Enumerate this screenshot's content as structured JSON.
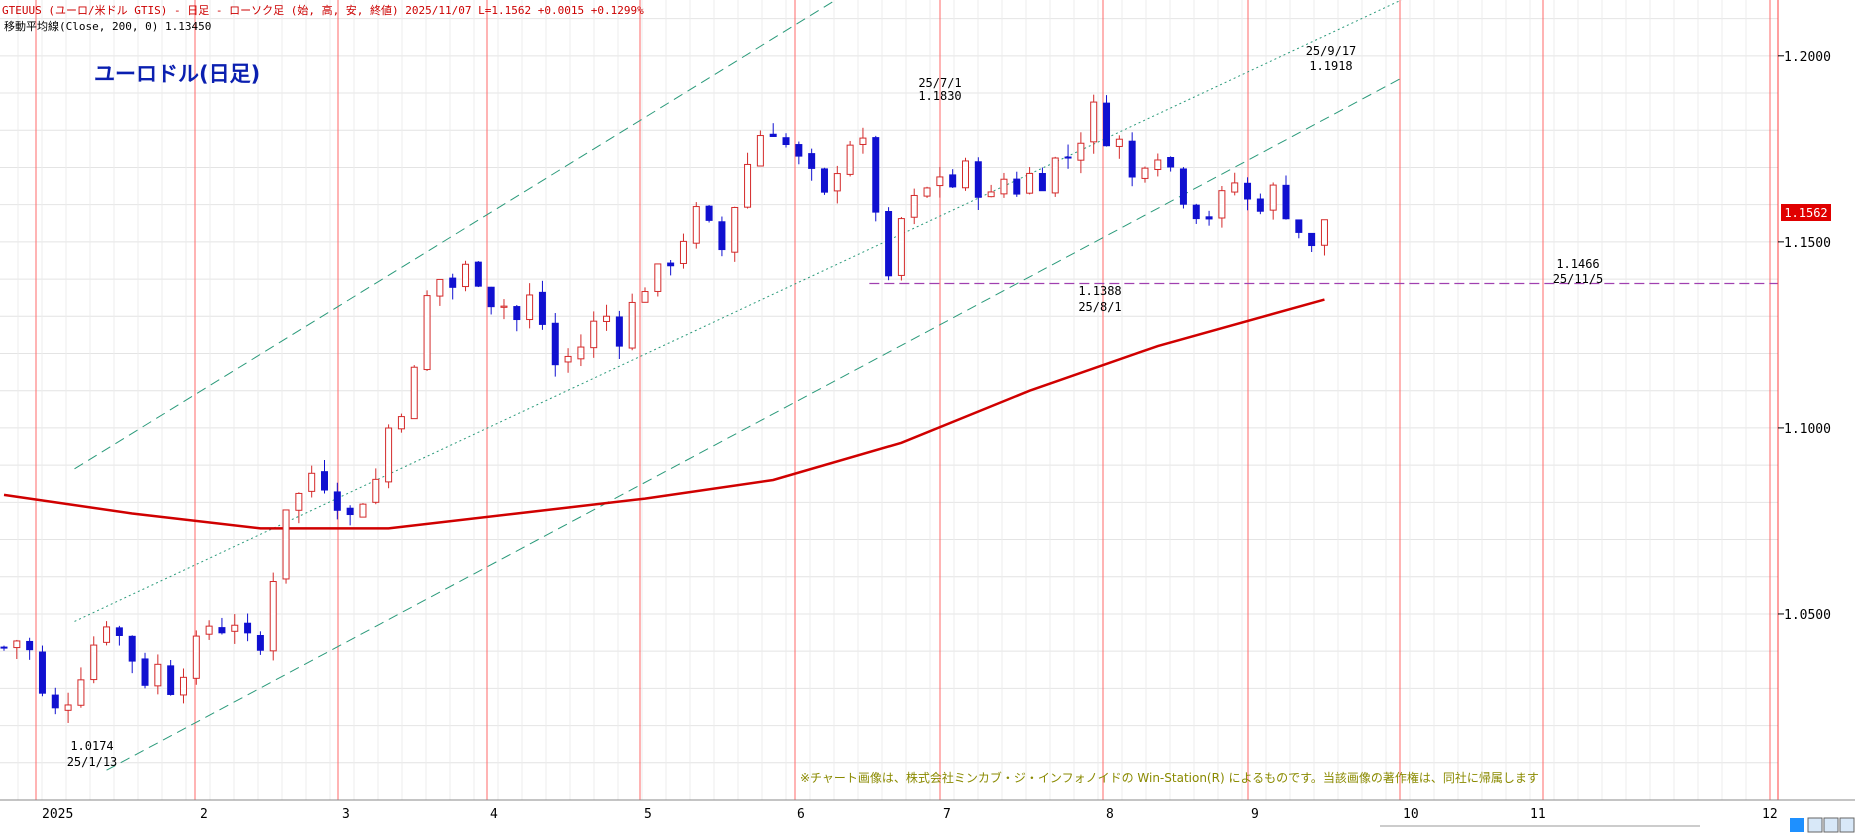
{
  "header": {
    "symbol_line": "GTEUUS (ユーロ/米ドル GTIS) - 日足 - ローソク足 (始, 高, 安, 終値)  2025/11/07  L=1.1562 +0.0015  +0.1299%",
    "ma_line": "移動平均線(Close, 200, 0) 1.13450"
  },
  "title": "ユーロドル(日足)",
  "copyright": "※チャート画像は、株式会社ミンカブ・ジ・インフォノイドの Win-Station(R) によるものです。当該画像の著作権は、同社に帰属します",
  "current_price_label": "1.1562",
  "colors": {
    "up": "#d42a2a",
    "down": "#1010d0",
    "ma": "#d00000",
    "channel": "#2a9a7a",
    "support": "#a040b0",
    "price_tag_bg": "#e00000"
  },
  "annotations": [
    {
      "value": "1.0174",
      "date": "25/1/13"
    },
    {
      "value": "1.1830",
      "date": "25/7/1"
    },
    {
      "value": "1.1388",
      "date": "25/8/1"
    },
    {
      "value": "1.1918",
      "date": "25/9/17"
    },
    {
      "value": "1.1466",
      "date": "25/11/5"
    }
  ],
  "chart_data": {
    "type": "candlestick",
    "interval": "daily",
    "ylim": [
      1.0,
      1.215
    ],
    "y_ticks": [
      "1.2000",
      "1.1500",
      "1.1000",
      "1.0500"
    ],
    "x_ticks": [
      "2025",
      "2",
      "3",
      "4",
      "5",
      "6",
      "7",
      "8",
      "9",
      "10",
      "11",
      "12"
    ],
    "grid": true,
    "close_path": [
      [
        0,
        1.041
      ],
      [
        4,
        1.043
      ],
      [
        8,
        1.04
      ],
      [
        12,
        1.028
      ],
      [
        16,
        1.024
      ],
      [
        20,
        1.027
      ],
      [
        24,
        1.034
      ],
      [
        28,
        1.042
      ],
      [
        32,
        1.048
      ],
      [
        36,
        1.044
      ],
      [
        40,
        1.038
      ],
      [
        44,
        1.032
      ],
      [
        48,
        1.036
      ],
      [
        52,
        1.03
      ],
      [
        56,
        1.035
      ],
      [
        60,
        1.042
      ],
      [
        64,
        1.047
      ],
      [
        68,
        1.046
      ],
      [
        72,
        1.048
      ],
      [
        76,
        1.043
      ],
      [
        80,
        1.04
      ],
      [
        84,
        1.06
      ],
      [
        88,
        1.079
      ],
      [
        92,
        1.082
      ],
      [
        96,
        1.088
      ],
      [
        100,
        1.085
      ],
      [
        104,
        1.08
      ],
      [
        108,
        1.076
      ],
      [
        112,
        1.081
      ],
      [
        116,
        1.086
      ],
      [
        120,
        1.1
      ],
      [
        124,
        1.105
      ],
      [
        128,
        1.115
      ],
      [
        132,
        1.135
      ],
      [
        136,
        1.14
      ],
      [
        140,
        1.138
      ],
      [
        144,
        1.143
      ],
      [
        148,
        1.14
      ],
      [
        152,
        1.134
      ],
      [
        156,
        1.133
      ],
      [
        160,
        1.129
      ],
      [
        164,
        1.135
      ],
      [
        168,
        1.128
      ],
      [
        172,
        1.117
      ],
      [
        176,
        1.119
      ],
      [
        180,
        1.122
      ],
      [
        184,
        1.128
      ],
      [
        188,
        1.13
      ],
      [
        192,
        1.124
      ],
      [
        196,
        1.133
      ],
      [
        200,
        1.138
      ],
      [
        204,
        1.142
      ],
      [
        208,
        1.145
      ],
      [
        212,
        1.151
      ],
      [
        216,
        1.158
      ],
      [
        220,
        1.154
      ],
      [
        224,
        1.148
      ],
      [
        228,
        1.16
      ],
      [
        232,
        1.171
      ],
      [
        236,
        1.179
      ],
      [
        240,
        1.18
      ],
      [
        244,
        1.176
      ],
      [
        248,
        1.172
      ],
      [
        252,
        1.168
      ],
      [
        256,
        1.162
      ],
      [
        260,
        1.17
      ],
      [
        264,
        1.177
      ],
      [
        268,
        1.176
      ],
      [
        272,
        1.159
      ],
      [
        276,
        1.1388
      ],
      [
        280,
        1.156
      ],
      [
        284,
        1.161
      ],
      [
        288,
        1.164
      ],
      [
        292,
        1.168
      ],
      [
        296,
        1.165
      ],
      [
        300,
        1.17
      ],
      [
        304,
        1.164
      ],
      [
        308,
        1.162
      ],
      [
        312,
        1.167
      ],
      [
        316,
        1.164
      ],
      [
        320,
        1.168
      ],
      [
        324,
        1.166
      ],
      [
        328,
        1.172
      ],
      [
        332,
        1.173
      ],
      [
        336,
        1.178
      ],
      [
        340,
        1.186
      ],
      [
        344,
        1.178
      ],
      [
        348,
        1.177
      ],
      [
        352,
        1.167
      ],
      [
        356,
        1.172
      ],
      [
        360,
        1.174
      ],
      [
        364,
        1.17
      ],
      [
        368,
        1.162
      ],
      [
        372,
        1.158
      ],
      [
        376,
        1.157
      ],
      [
        380,
        1.162
      ],
      [
        384,
        1.166
      ],
      [
        388,
        1.161
      ],
      [
        392,
        1.16
      ],
      [
        396,
        1.164
      ],
      [
        400,
        1.158
      ],
      [
        404,
        1.153
      ],
      [
        408,
        1.148
      ],
      [
        412,
        1.1562
      ]
    ],
    "ma200_path": [
      [
        0,
        1.082
      ],
      [
        40,
        1.077
      ],
      [
        80,
        1.073
      ],
      [
        120,
        1.073
      ],
      [
        160,
        1.077
      ],
      [
        200,
        1.081
      ],
      [
        240,
        1.086
      ],
      [
        280,
        1.096
      ],
      [
        320,
        1.11
      ],
      [
        360,
        1.122
      ],
      [
        412,
        1.1345
      ]
    ],
    "channels": [
      {
        "style": "dashed",
        "from": [
          22,
          1.089
        ],
        "to": [
          316,
          1.245
        ]
      },
      {
        "style": "dotted",
        "from": [
          22,
          1.048
        ],
        "to": [
          436,
          1.215
        ]
      },
      {
        "style": "dashed",
        "from": [
          32,
          1.008
        ],
        "to": [
          436,
          1.194
        ]
      }
    ],
    "support_level": 1.1388,
    "support_from": 270
  }
}
